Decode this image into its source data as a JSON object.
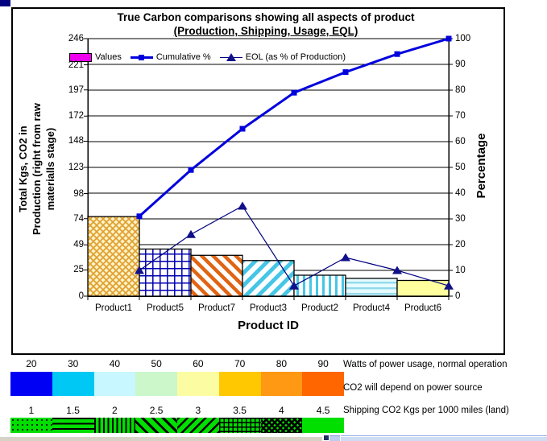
{
  "window": {
    "top_left_block_color": "#000080",
    "statusbar": {
      "left_strip_color": "#D6D2C6",
      "divider_color": "#1F3264",
      "button_color": "#BCCEEF",
      "scrollbar_color": "#CEDCF4"
    }
  },
  "chart": {
    "title_line1": "True Carbon comparisons showing all aspects of product",
    "title_line2": "(Production, Shipping, Usage, EQL)",
    "x_axis_title": "Product ID",
    "y_left_axis_title": "Total Kgs, CO2 in\nProduction (right from raw\nmaterialls stage)",
    "y_right_axis_title": "Percentage",
    "legend": {
      "values_label": "Values",
      "cumulative_label": "Cumulative %",
      "eol_label": "EOL (as % of Production)"
    },
    "colors": {
      "values_swatch": "#EE00EE",
      "cumulative_line": "#0000DD",
      "eol_line": "#000080",
      "eol_marker": "#10108A",
      "grid": "#000000"
    }
  },
  "chart_data": {
    "type": "combo-pareto (patterned bars on left axis + 2 marker lines on right axis)",
    "title": "True Carbon comparisons showing all aspects of product (Production, Shipping, Usage, EQL)",
    "categories": [
      "Product1",
      "Product5",
      "Product7",
      "Product3",
      "Product2",
      "Product4",
      "Product6"
    ],
    "series": [
      {
        "name": "Values",
        "type": "bar",
        "axis": "left",
        "values": [
          76,
          45,
          39,
          34,
          20,
          17,
          15
        ]
      },
      {
        "name": "Cumulative %",
        "type": "line",
        "axis": "right",
        "marker": "square",
        "values": [
          31,
          49,
          65,
          79,
          87,
          94,
          100
        ]
      },
      {
        "name": "EOL (as % of Production)",
        "type": "line",
        "axis": "right",
        "marker": "triangle",
        "values": [
          10,
          24,
          35,
          4,
          15,
          10,
          4
        ]
      }
    ],
    "x_label": "Product ID",
    "y_left": {
      "label": "Total Kgs, CO2 in Production (right from raw materialls stage)",
      "ticks": [
        0,
        25,
        49,
        74,
        98,
        123,
        148,
        172,
        197,
        221,
        246
      ],
      "max": 246
    },
    "y_right": {
      "label": "Percentage",
      "ticks": [
        0,
        10,
        20,
        30,
        40,
        50,
        60,
        70,
        80,
        90,
        100
      ],
      "max": 100
    },
    "grid": "horizontal gridlines on",
    "legend_position": "inside top-left",
    "line_points_position": "at category right edges",
    "bar_fills": [
      {
        "category": "Product1",
        "pattern": "diagonal-crosshatch",
        "fg": "#DFA030",
        "bg": "#FFF2C6"
      },
      {
        "category": "Product5",
        "pattern": "grid",
        "fg": "#0000B0",
        "bg": "#FFFFFF"
      },
      {
        "category": "Product7",
        "pattern": "diagonal-up",
        "fg": "#E06414",
        "bg": "#FFFFFF"
      },
      {
        "category": "Product3",
        "pattern": "diagonal-down",
        "fg": "#46C6E6",
        "bg": "#FFFFFF"
      },
      {
        "category": "Product2",
        "pattern": "vertical",
        "fg": "#46C6E6",
        "bg": "#FFFFFF"
      },
      {
        "category": "Product4",
        "pattern": "horizontal",
        "fg": "#92DAEA",
        "bg": "#E6FBFF"
      },
      {
        "category": "Product6",
        "pattern": "solid",
        "fg": "#FFFF9E",
        "bg": "#FFFF9E"
      }
    ]
  },
  "power_strip": {
    "tick_labels": [
      "20",
      "30",
      "40",
      "50",
      "60",
      "70",
      "80",
      "90"
    ],
    "colors": [
      "#0000F5",
      "#00C8F5",
      "#C9F7FF",
      "#CBF7CB",
      "#FCFCA2",
      "#FFC800",
      "#FF9913",
      "#FF6600"
    ],
    "caption_line1": "Watts of power usage, normal operation",
    "caption_line2": "CO2 will depend on power source"
  },
  "shipping_strip": {
    "tick_labels": [
      "1",
      "1.5",
      "2",
      "2.5",
      "3",
      "3.5",
      "4",
      "4.5"
    ],
    "base_color": "#00DF00",
    "patterns": [
      "dots",
      "horizontal-lines",
      "vertical-lines",
      "diagonal-down",
      "diagonal-up",
      "grid",
      "checker",
      "solid"
    ],
    "caption": "Shipping CO2 Kgs per 1000 miles (land)"
  }
}
